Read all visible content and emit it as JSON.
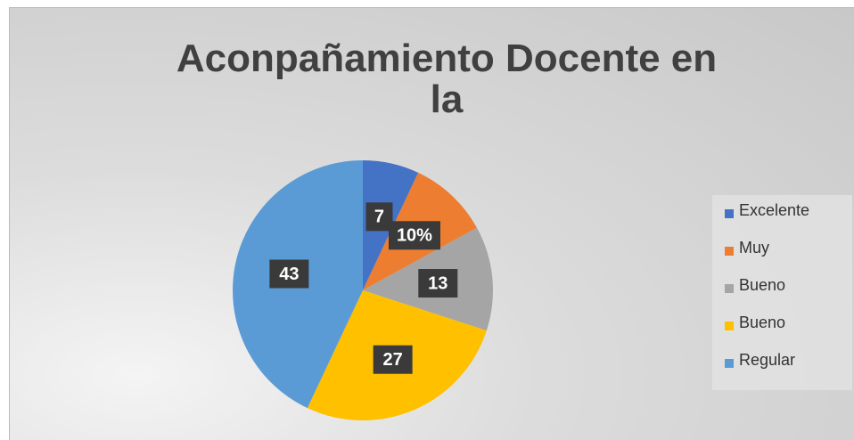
{
  "chart_data": {
    "type": "pie",
    "title": "Aconpañamiento Docente en la",
    "categories": [
      "Excelente",
      "Muy",
      "Bueno",
      "Bueno",
      "Regular"
    ],
    "values": [
      7,
      10,
      13,
      27,
      43
    ],
    "value_labels": [
      "7",
      "10%",
      "13",
      "27",
      "43"
    ],
    "colors": [
      "#4472c4",
      "#ed7d31",
      "#a5a5a5",
      "#ffc000",
      "#5b9bd5"
    ],
    "legend": "right"
  }
}
